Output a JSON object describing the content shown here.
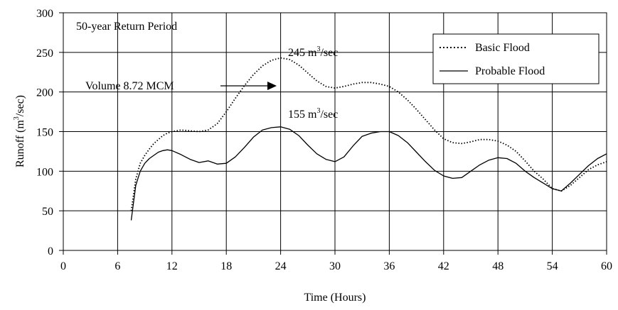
{
  "chart_data": {
    "type": "line",
    "title": "50-year Return Period",
    "xlabel": "Time (Hours)",
    "ylabel": {
      "prefix": "Runoff (m",
      "sup": "3",
      "suffix": "/sec)"
    },
    "xlim": [
      0,
      60
    ],
    "ylim": [
      0,
      300
    ],
    "x_ticks": [
      0,
      6,
      12,
      18,
      24,
      30,
      36,
      42,
      48,
      54,
      60
    ],
    "y_ticks": [
      0,
      50,
      100,
      150,
      200,
      250,
      300
    ],
    "grid": true,
    "legend_position": "top-right",
    "series": [
      {
        "name": "Basic Flood",
        "style": "dotted",
        "color": "#000000",
        "x": [
          7.5,
          8,
          8.5,
          9,
          9.5,
          10,
          10.5,
          11,
          11.5,
          12,
          13,
          14,
          15,
          16,
          17,
          18,
          19,
          20,
          21,
          22,
          23,
          24,
          25,
          26,
          27,
          28,
          29,
          30,
          31,
          32,
          33,
          34,
          35,
          36,
          37,
          38,
          39,
          40,
          41,
          42,
          43,
          44,
          45,
          46,
          47,
          48,
          49,
          50,
          51,
          52,
          53,
          54,
          55,
          56,
          57,
          58,
          59,
          60
        ],
        "y": [
          50,
          90,
          110,
          120,
          128,
          135,
          140,
          145,
          148,
          150,
          152,
          151,
          150,
          152,
          160,
          175,
          192,
          208,
          222,
          233,
          240,
          243,
          241,
          234,
          224,
          214,
          207,
          205,
          207,
          210,
          212,
          212,
          210,
          207,
          200,
          190,
          178,
          165,
          152,
          141,
          136,
          135,
          137,
          140,
          140,
          138,
          133,
          125,
          113,
          100,
          90,
          78,
          75,
          82,
          92,
          102,
          108,
          112
        ]
      },
      {
        "name": "Probable Flood",
        "style": "solid",
        "color": "#000000",
        "x": [
          7.5,
          8,
          8.5,
          9,
          9.5,
          10,
          10.5,
          11,
          11.5,
          12,
          13,
          14,
          15,
          16,
          17,
          18,
          19,
          20,
          21,
          22,
          23,
          24,
          25,
          26,
          27,
          28,
          29,
          30,
          31,
          32,
          33,
          34,
          35,
          36,
          37,
          38,
          39,
          40,
          41,
          42,
          43,
          44,
          45,
          46,
          47,
          48,
          49,
          50,
          51,
          52,
          53,
          54,
          55,
          56,
          57,
          58,
          59,
          60
        ],
        "y": [
          38,
          82,
          100,
          110,
          116,
          120,
          124,
          126,
          127,
          126,
          121,
          115,
          111,
          113,
          109,
          110,
          118,
          130,
          143,
          152,
          155,
          156,
          153,
          145,
          133,
          122,
          115,
          112,
          118,
          132,
          144,
          148,
          150,
          150,
          145,
          136,
          124,
          112,
          101,
          94,
          91,
          92,
          100,
          108,
          114,
          117,
          116,
          110,
          100,
          92,
          85,
          78,
          75,
          85,
          96,
          107,
          116,
          122
        ]
      }
    ],
    "annotations": {
      "peak_basic": {
        "x": 24,
        "y": 245,
        "prefix": "245 m",
        "sup": "3",
        "suffix": "/sec"
      },
      "peak_probable": {
        "x": 24,
        "y": 155,
        "prefix": "155 m",
        "sup": "3",
        "suffix": "/sec"
      },
      "volume": {
        "text": "Volume 8.72 MCM",
        "arrow_from": [
          18,
          217
        ],
        "arrow_to": [
          24,
          217
        ]
      }
    }
  }
}
